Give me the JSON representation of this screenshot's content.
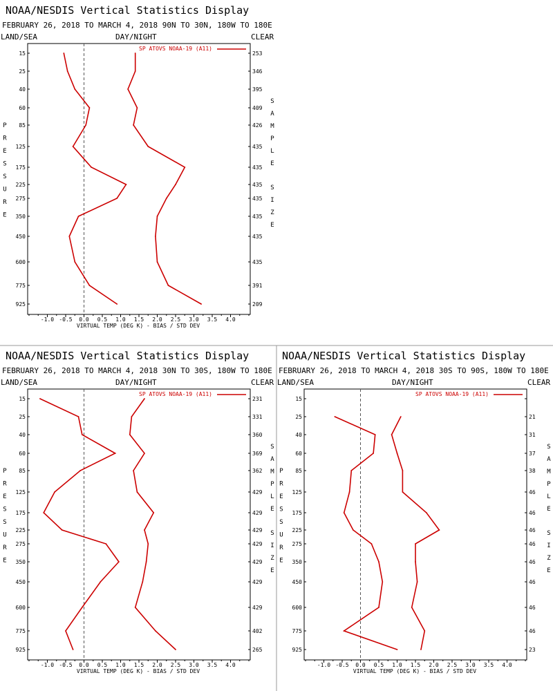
{
  "title": "NOAA/NESDIS Vertical Statistics Display",
  "header": {
    "left": "LAND/SEA",
    "center": "DAY/NIGHT",
    "right": "CLEAR"
  },
  "y_label_vertical": "PRESSURE",
  "sample_label_vertical": "SAMPLE SIZE",
  "x_label": "VIRTUAL TEMP (DEG K) - BIAS / STD DEV",
  "x_ticks": [
    "-1.0",
    "-0.5",
    "0.0",
    "0.5",
    "1.0",
    "1.5",
    "2.0",
    "2.5",
    "3.0",
    "3.5",
    "4.0"
  ],
  "colors": {
    "series": "#cc0000",
    "frame": "#000000",
    "zero_line": "#555555",
    "divider": "#999999"
  },
  "chart_data": [
    {
      "type": "line",
      "subtitle": "FEBRUARY 26, 2018 TO MARCH 4, 2018  90N TO 30N, 180W TO 180E",
      "legend": "SP ATOVS NOAA-19 (A11)",
      "pressure_levels": [
        "15",
        "25",
        "40",
        "60",
        "85",
        "125",
        "175",
        "225",
        "275",
        "350",
        "450",
        "600",
        "775",
        "925"
      ],
      "sample_size": [
        "253",
        "346",
        "395",
        "409",
        "426",
        "435",
        "435",
        "435",
        "435",
        "435",
        "435",
        "435",
        "391",
        "209"
      ],
      "bias": [
        -0.55,
        -0.45,
        -0.25,
        0.15,
        0.05,
        -0.3,
        0.2,
        1.15,
        0.9,
        -0.15,
        -0.4,
        -0.25,
        0.15,
        0.9
      ],
      "std_dev": [
        1.4,
        1.4,
        1.2,
        1.45,
        1.35,
        1.75,
        2.75,
        2.5,
        2.25,
        2.0,
        1.95,
        2.0,
        2.3,
        3.2
      ],
      "x_range": [
        -1.5,
        4.5
      ]
    },
    {
      "type": "line",
      "subtitle": "FEBRUARY 26, 2018 TO MARCH 4, 2018  30N TO 30S, 180W TO 180E",
      "legend": "SP ATOVS NOAA-19 (A11)",
      "pressure_levels": [
        "15",
        "25",
        "40",
        "60",
        "85",
        "125",
        "175",
        "225",
        "275",
        "350",
        "450",
        "600",
        "775",
        "925"
      ],
      "sample_size": [
        "231",
        "331",
        "360",
        "369",
        "362",
        "429",
        "429",
        "429",
        "429",
        "429",
        "429",
        "429",
        "402",
        "265"
      ],
      "bias": [
        -1.2,
        -0.15,
        -0.05,
        0.85,
        -0.1,
        -0.8,
        -1.1,
        -0.6,
        0.6,
        0.95,
        0.45,
        -0.05,
        -0.5,
        -0.3
      ],
      "std_dev": [
        1.65,
        1.3,
        1.25,
        1.65,
        1.35,
        1.45,
        1.9,
        1.65,
        1.75,
        1.7,
        1.6,
        1.4,
        1.95,
        2.5
      ],
      "x_range": [
        -1.5,
        4.5
      ]
    },
    {
      "type": "line",
      "subtitle": "FEBRUARY 26, 2018 TO MARCH 4, 2018  30S TO 90S, 180W TO 180E",
      "legend": "SP ATOVS NOAA-19 (A11)",
      "pressure_levels": [
        "15",
        "25",
        "40",
        "60",
        "85",
        "125",
        "175",
        "225",
        "275",
        "350",
        "450",
        "600",
        "775",
        "925"
      ],
      "sample_size": [
        "",
        "21",
        "31",
        "37",
        "38",
        "46",
        "46",
        "46",
        "46",
        "46",
        "46",
        "46",
        "46",
        "23"
      ],
      "bias": [
        null,
        -0.7,
        0.4,
        0.35,
        -0.25,
        -0.3,
        -0.45,
        -0.2,
        0.3,
        0.5,
        0.6,
        0.5,
        -0.45,
        1.0
      ],
      "std_dev": [
        null,
        1.1,
        0.85,
        1.0,
        1.15,
        1.15,
        1.8,
        2.15,
        1.5,
        1.5,
        1.55,
        1.4,
        1.75,
        1.65
      ],
      "x_range": [
        -1.5,
        4.5
      ]
    }
  ]
}
